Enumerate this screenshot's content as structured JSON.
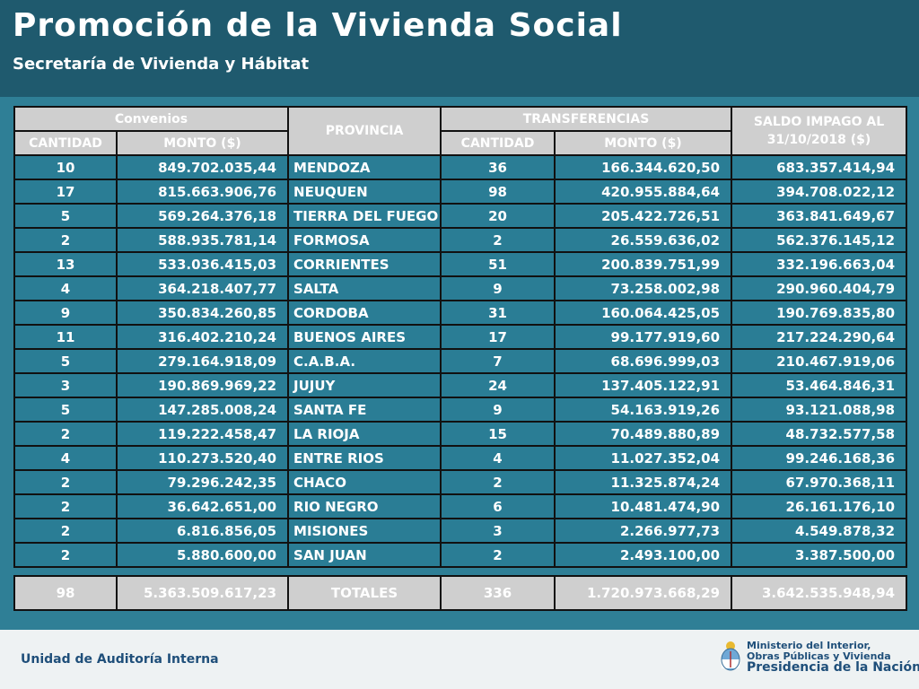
{
  "header": {
    "title": "Promoción de la Vivienda Social",
    "subtitle": "Secretaría de Vivienda y Hábitat"
  },
  "table": {
    "group_convenios": "Convenios",
    "col_provincia": "PROVINCIA",
    "group_transferencias": "TRANSFERENCIAS",
    "col_saldo": "SALDO IMPAGO AL 31/10/2018 ($)",
    "col_cantidad": "CANTIDAD",
    "col_monto": "MONTO ($)",
    "rows": [
      {
        "conv_cant": "10",
        "conv_monto": "849.702.035,44",
        "provincia": "MENDOZA",
        "tr_cant": "36",
        "tr_monto": "166.344.620,50",
        "saldo": "683.357.414,94"
      },
      {
        "conv_cant": "17",
        "conv_monto": "815.663.906,76",
        "provincia": "NEUQUEN",
        "tr_cant": "98",
        "tr_monto": "420.955.884,64",
        "saldo": "394.708.022,12"
      },
      {
        "conv_cant": "5",
        "conv_monto": "569.264.376,18",
        "provincia": "TIERRA DEL FUEGO",
        "tr_cant": "20",
        "tr_monto": "205.422.726,51",
        "saldo": "363.841.649,67"
      },
      {
        "conv_cant": "2",
        "conv_monto": "588.935.781,14",
        "provincia": "FORMOSA",
        "tr_cant": "2",
        "tr_monto": "26.559.636,02",
        "saldo": "562.376.145,12"
      },
      {
        "conv_cant": "13",
        "conv_monto": "533.036.415,03",
        "provincia": "CORRIENTES",
        "tr_cant": "51",
        "tr_monto": "200.839.751,99",
        "saldo": "332.196.663,04"
      },
      {
        "conv_cant": "4",
        "conv_monto": "364.218.407,77",
        "provincia": "SALTA",
        "tr_cant": "9",
        "tr_monto": "73.258.002,98",
        "saldo": "290.960.404,79"
      },
      {
        "conv_cant": "9",
        "conv_monto": "350.834.260,85",
        "provincia": "CORDOBA",
        "tr_cant": "31",
        "tr_monto": "160.064.425,05",
        "saldo": "190.769.835,80"
      },
      {
        "conv_cant": "11",
        "conv_monto": "316.402.210,24",
        "provincia": "BUENOS AIRES",
        "tr_cant": "17",
        "tr_monto": "99.177.919,60",
        "saldo": "217.224.290,64"
      },
      {
        "conv_cant": "5",
        "conv_monto": "279.164.918,09",
        "provincia": "C.A.B.A.",
        "tr_cant": "7",
        "tr_monto": "68.696.999,03",
        "saldo": "210.467.919,06"
      },
      {
        "conv_cant": "3",
        "conv_monto": "190.869.969,22",
        "provincia": "JUJUY",
        "tr_cant": "24",
        "tr_monto": "137.405.122,91",
        "saldo": "53.464.846,31"
      },
      {
        "conv_cant": "5",
        "conv_monto": "147.285.008,24",
        "provincia": "SANTA FE",
        "tr_cant": "9",
        "tr_monto": "54.163.919,26",
        "saldo": "93.121.088,98"
      },
      {
        "conv_cant": "2",
        "conv_monto": "119.222.458,47",
        "provincia": "LA RIOJA",
        "tr_cant": "15",
        "tr_monto": "70.489.880,89",
        "saldo": "48.732.577,58"
      },
      {
        "conv_cant": "4",
        "conv_monto": "110.273.520,40",
        "provincia": "ENTRE RIOS",
        "tr_cant": "4",
        "tr_monto": "11.027.352,04",
        "saldo": "99.246.168,36"
      },
      {
        "conv_cant": "2",
        "conv_monto": "79.296.242,35",
        "provincia": "CHACO",
        "tr_cant": "2",
        "tr_monto": "11.325.874,24",
        "saldo": "67.970.368,11"
      },
      {
        "conv_cant": "2",
        "conv_monto": "36.642.651,00",
        "provincia": "RIO NEGRO",
        "tr_cant": "6",
        "tr_monto": "10.481.474,90",
        "saldo": "26.161.176,10"
      },
      {
        "conv_cant": "2",
        "conv_monto": "6.816.856,05",
        "provincia": "MISIONES",
        "tr_cant": "3",
        "tr_monto": "2.266.977,73",
        "saldo": "4.549.878,32"
      },
      {
        "conv_cant": "2",
        "conv_monto": "5.880.600,00",
        "provincia": "SAN JUAN",
        "tr_cant": "2",
        "tr_monto": "2.493.100,00",
        "saldo": "3.387.500,00"
      }
    ],
    "totals": {
      "conv_cant": "98",
      "conv_monto": "5.363.509.617,23",
      "label": "TOTALES",
      "tr_cant": "336",
      "tr_monto": "1.720.973.668,29",
      "saldo": "3.642.535.948,94"
    }
  },
  "footer": {
    "left_text": "Unidad de Auditoría Interna",
    "ministry_line1": "Ministerio del Interior,",
    "ministry_line2": "Obras Públicas y Vivienda",
    "presidency": "Presidencia de la Nación",
    "emblem_icon": "argentina-coat-of-arms-icon"
  },
  "colors": {
    "header_bg": "#1f5a6e",
    "body_bg": "#2f7f96",
    "cell_bg": "#2a7d95",
    "header_cell_bg": "#cfcfcf",
    "footer_bg": "#eef2f3",
    "footer_text": "#1f4f7a"
  }
}
